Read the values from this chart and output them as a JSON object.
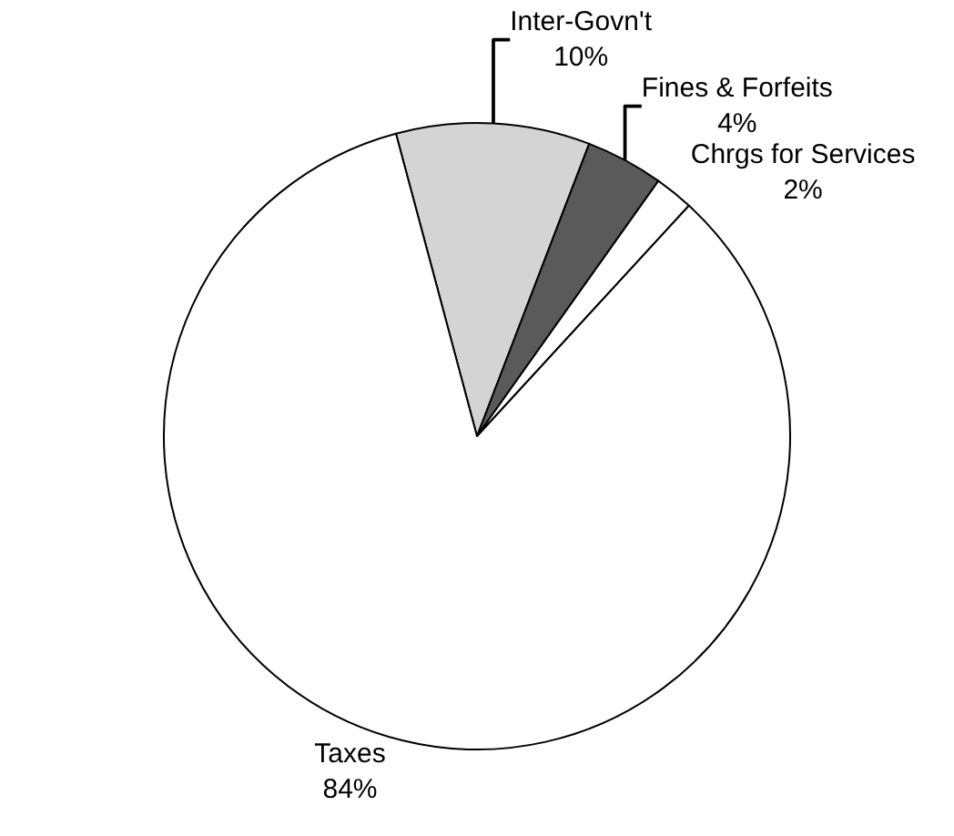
{
  "chart_data": {
    "type": "pie",
    "categories": [
      "Inter-Govn't",
      "Fines & Forfeits",
      "Chrgs for Services",
      "Taxes"
    ],
    "values": [
      10,
      4,
      2,
      84
    ],
    "value_labels": [
      "10%",
      "4%",
      "2%",
      "84%"
    ],
    "colors": [
      "#d4d4d4",
      "#5a5a5a",
      "#ffffff",
      "#ffffff"
    ],
    "legend": false
  }
}
